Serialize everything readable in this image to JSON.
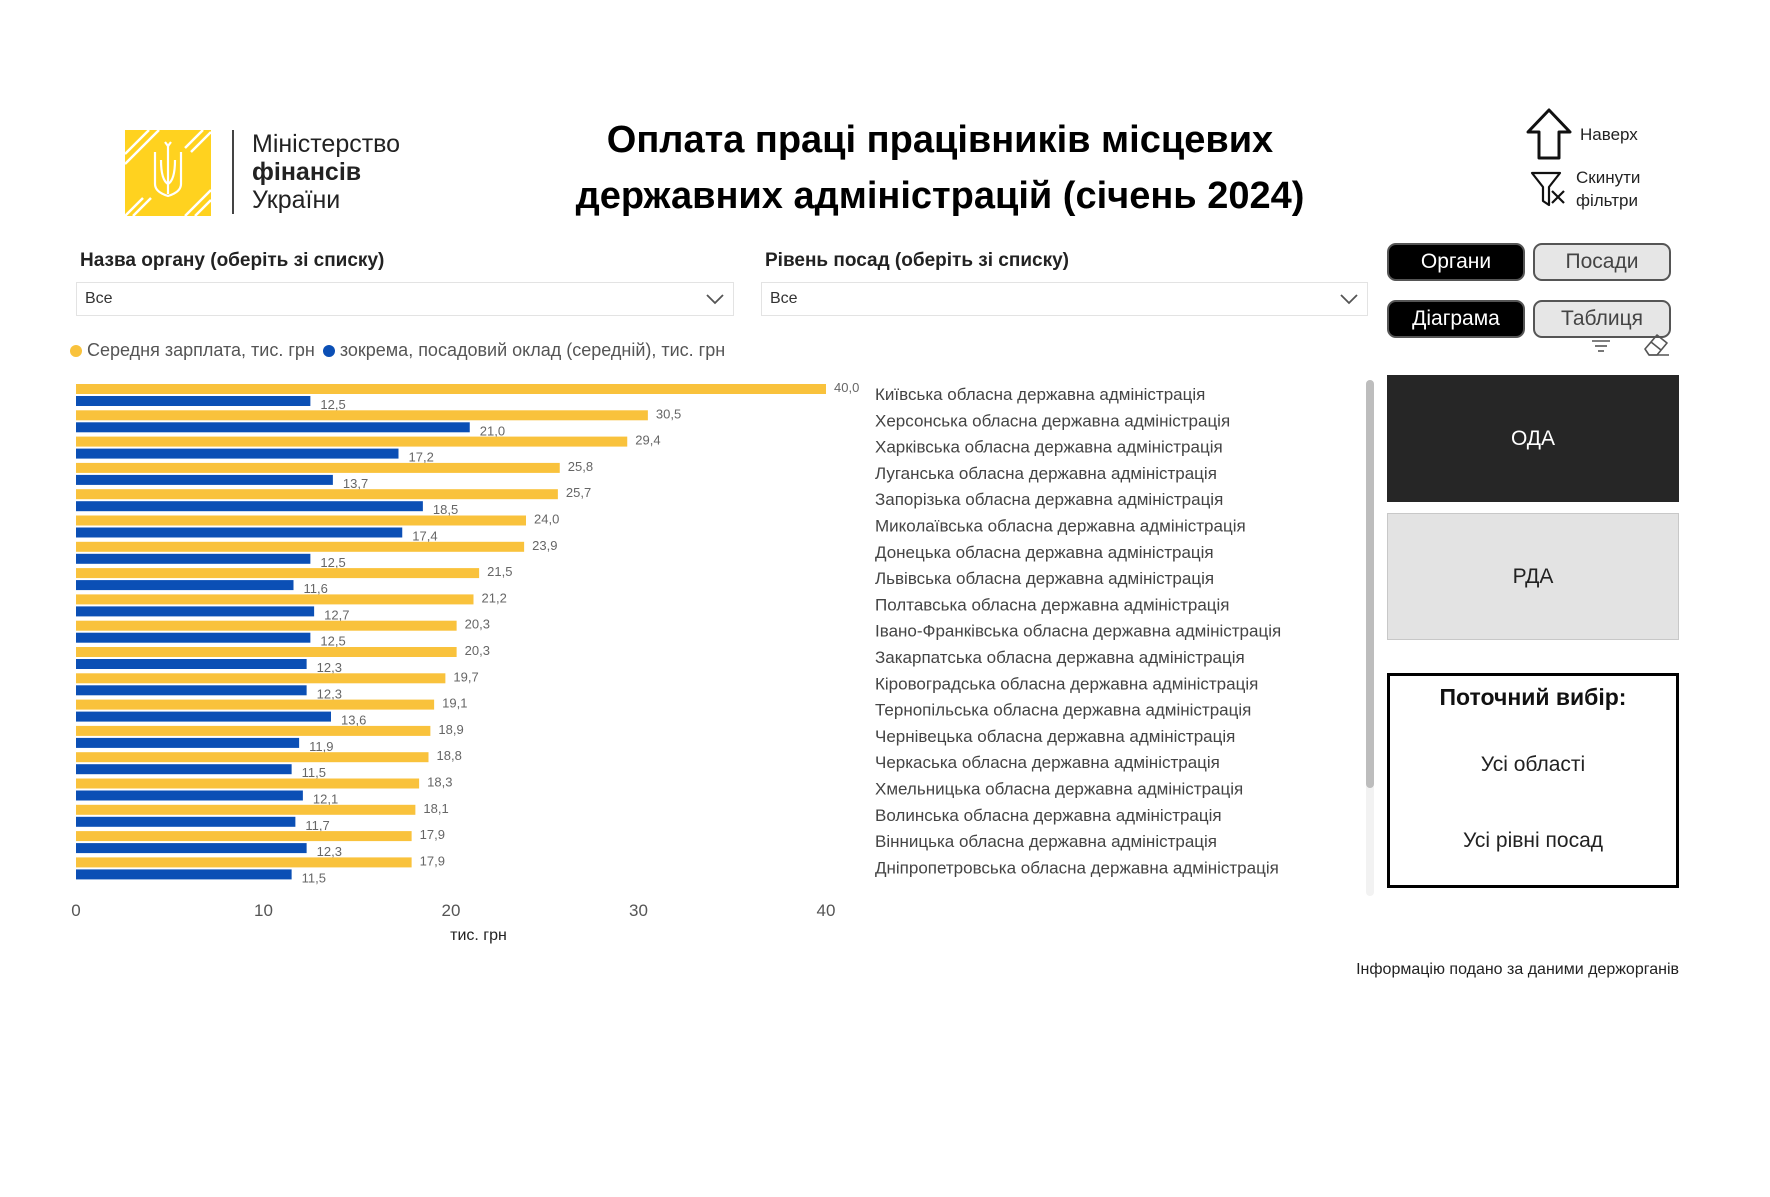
{
  "header": {
    "ministry_line1": "Міністерство",
    "ministry_line2": "фінансів",
    "ministry_line3": "України",
    "title_line1": "Оплата праці працівників місцевих",
    "title_line2": "державних адміністрацій (січень 2024)"
  },
  "nav": {
    "up_label": "Наверх",
    "reset_label_line1": "Скинути",
    "reset_label_line2": "фільтри"
  },
  "filters": {
    "organ_label": "Назва органу (оберіть зі списку)",
    "organ_value": "Все",
    "level_label": "Рівень посад (оберіть зі списку)",
    "level_value": "Все"
  },
  "toggles": {
    "organs": "Органи",
    "positions": "Посади",
    "chart": "Діаграма",
    "table": "Таблиця"
  },
  "tiles": {
    "oda": "ОДА",
    "rda": "РДА"
  },
  "current": {
    "heading": "Поточний вибір:",
    "region": "Усі області",
    "level": "Усі рівні посад"
  },
  "footer": "Інформацію подано за даними держорганів",
  "colors": {
    "salary": "#f9c23c",
    "base": "#0b4fb5",
    "logo": "#ffd21f"
  },
  "chart_data": {
    "type": "bar",
    "orientation": "horizontal",
    "categories": [
      "Київська обласна державна адміністрація",
      "Херсонська обласна державна адміністрація",
      "Харківська обласна державна адміністрація",
      "Луганська обласна державна адміністрація",
      "Запорізька обласна державна адміністрація",
      "Миколаївська обласна державна адміністрація",
      "Донецька обласна державна адміністрація",
      "Львівська обласна державна адміністрація",
      "Полтавська обласна державна адміністрація",
      "Івано-Франківська обласна державна адміністрація",
      "Закарпатська обласна державна адміністрація",
      "Кіровоградська обласна державна адміністрація",
      "Тернопільська обласна державна адміністрація",
      "Чернівецька обласна державна адміністрація",
      "Черкаська обласна державна адміністрація",
      "Хмельницька обласна державна адміністрація",
      "Волинська обласна державна адміністрація",
      "Вінницька обласна державна адміністрація",
      "Дніпропетровська обласна державна адміністрація"
    ],
    "series": [
      {
        "name": "Середня зарплата, тис. грн",
        "color": "#f9c23c",
        "values": [
          40.0,
          30.5,
          29.4,
          25.8,
          25.7,
          24.0,
          23.9,
          21.5,
          21.2,
          20.3,
          20.3,
          19.7,
          19.1,
          18.9,
          18.8,
          18.3,
          18.1,
          17.9,
          17.9
        ],
        "labels": [
          "40,0",
          "30,5",
          "29,4",
          "25,8",
          "25,7",
          "24,0",
          "23,9",
          "21,5",
          "21,2",
          "20,3",
          "20,3",
          "19,7",
          "19,1",
          "18,9",
          "18,8",
          "18,3",
          "18,1",
          "17,9",
          "17,9"
        ]
      },
      {
        "name": "зокрема, посадовий оклад (середній), тис. грн",
        "color": "#0b4fb5",
        "values": [
          12.5,
          21.0,
          17.2,
          13.7,
          18.5,
          17.4,
          12.5,
          11.6,
          12.7,
          12.5,
          12.3,
          12.3,
          13.6,
          11.9,
          11.5,
          12.1,
          11.7,
          12.3,
          11.5
        ],
        "labels": [
          "12,5",
          "21,0",
          "17,2",
          "13,7",
          "18,5",
          "17,4",
          "12,5",
          "11,6",
          "12,7",
          "12,5",
          "12,3",
          "12,3",
          "13,6",
          "11,9",
          "11,5",
          "12,1",
          "11,7",
          "12,3",
          "11,5"
        ]
      }
    ],
    "xticks": [
      "0",
      "10",
      "20",
      "30",
      "40"
    ],
    "xlim": [
      0,
      40
    ],
    "xlabel": "тис. грн",
    "legend_position": "top-left"
  }
}
